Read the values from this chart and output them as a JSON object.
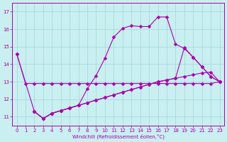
{
  "xlabel": "Windchill (Refroidissement éolien,°C)",
  "xlim": [
    -0.5,
    23.5
  ],
  "ylim": [
    10.5,
    17.5
  ],
  "yticks": [
    11,
    12,
    13,
    14,
    15,
    16,
    17
  ],
  "xticks": [
    0,
    1,
    2,
    3,
    4,
    5,
    6,
    7,
    8,
    9,
    10,
    11,
    12,
    13,
    14,
    15,
    16,
    17,
    18,
    19,
    20,
    21,
    22,
    23
  ],
  "bg_color": "#c9eff1",
  "grid_color": "#a0d8d8",
  "line_color": "#aa00aa",
  "series1_x": [
    0,
    1,
    2,
    3,
    4,
    5,
    6,
    7,
    8,
    9,
    10,
    11,
    12,
    13,
    14,
    15,
    16,
    17,
    18,
    19,
    20,
    21,
    22,
    23
  ],
  "series1_y": [
    14.6,
    12.9,
    12.9,
    12.9,
    12.9,
    12.9,
    12.9,
    12.9,
    12.9,
    12.9,
    12.9,
    12.9,
    12.9,
    12.9,
    12.9,
    12.9,
    12.9,
    12.9,
    12.9,
    12.9,
    12.9,
    12.9,
    12.9,
    13.0
  ],
  "series2_x": [
    2,
    3,
    4,
    5,
    6,
    7,
    8,
    9,
    10,
    11,
    12,
    13,
    14,
    15,
    16,
    17,
    18,
    19,
    20,
    21,
    22,
    23
  ],
  "series2_y": [
    11.3,
    10.9,
    11.2,
    11.35,
    11.5,
    11.65,
    11.8,
    11.95,
    12.1,
    12.25,
    12.4,
    12.55,
    12.7,
    12.85,
    13.0,
    13.1,
    13.2,
    13.3,
    13.4,
    13.5,
    13.55,
    13.0
  ],
  "series3_x": [
    0,
    2,
    3,
    4,
    5,
    6,
    7,
    8,
    9,
    10,
    11,
    12,
    13,
    14,
    15,
    16,
    17,
    18,
    19,
    20,
    21,
    22,
    23
  ],
  "series3_y": [
    14.6,
    11.3,
    10.9,
    11.2,
    11.35,
    11.5,
    11.65,
    12.6,
    13.35,
    14.35,
    15.55,
    16.05,
    16.2,
    16.15,
    16.15,
    16.7,
    16.7,
    15.15,
    14.9,
    14.4,
    13.85,
    13.3,
    13.0
  ],
  "series4_x": [
    2,
    3,
    4,
    5,
    6,
    7,
    8,
    9,
    10,
    11,
    12,
    13,
    14,
    15,
    16,
    17,
    18,
    19,
    20,
    21,
    22,
    23
  ],
  "series4_y": [
    11.3,
    10.9,
    11.2,
    11.35,
    11.5,
    11.65,
    11.8,
    11.95,
    12.1,
    12.25,
    12.4,
    12.55,
    12.7,
    12.85,
    13.0,
    13.1,
    13.2,
    14.95,
    14.4,
    13.85,
    13.3,
    13.0
  ]
}
